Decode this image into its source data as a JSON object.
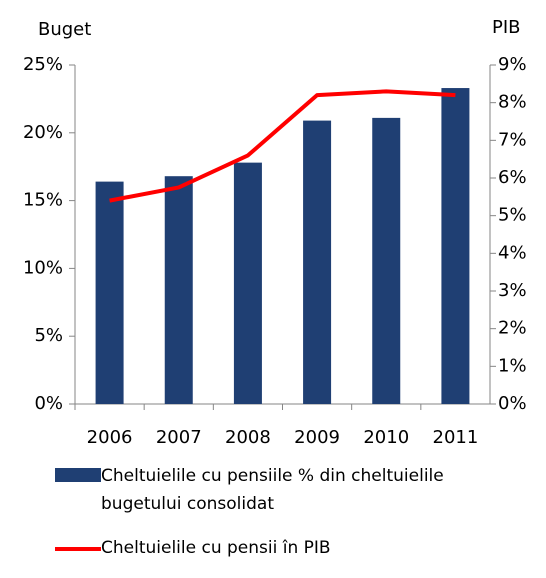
{
  "chart_data": {
    "type": "bar-line",
    "y_label": "Buget",
    "y2_label": "PIB",
    "categories": [
      "2006",
      "2007",
      "2008",
      "2009",
      "2010",
      "2011"
    ],
    "series": [
      {
        "name": "Cheltuielile cu pensiile % din cheltuielile bugetului consolidat",
        "type": "bar",
        "color": "#1f3f73",
        "values": [
          16.4,
          16.8,
          17.8,
          20.9,
          21.1,
          23.3
        ]
      },
      {
        "name": "Cheltuielile cu pensii în PIB",
        "type": "line",
        "axis": "y2",
        "color": "#ff0000",
        "values": [
          5.4,
          5.75,
          6.6,
          8.2,
          8.3,
          8.2
        ]
      }
    ],
    "ylim": [
      0,
      25
    ],
    "yticks": [
      {
        "value": 0,
        "label": "0%"
      },
      {
        "value": 5,
        "label": "5%"
      },
      {
        "value": 10,
        "label": "10%"
      },
      {
        "value": 15,
        "label": "15%"
      },
      {
        "value": 20,
        "label": "20%"
      },
      {
        "value": 25,
        "label": "25%"
      }
    ],
    "y2lim": [
      0,
      9
    ],
    "y2ticks": [
      {
        "value": 0,
        "label": "0%"
      },
      {
        "value": 1,
        "label": "1%"
      },
      {
        "value": 2,
        "label": "2%"
      },
      {
        "value": 3,
        "label": "3%"
      },
      {
        "value": 4,
        "label": "4%"
      },
      {
        "value": 5,
        "label": "5%"
      },
      {
        "value": 6,
        "label": "6%"
      },
      {
        "value": 7,
        "label": "7%"
      },
      {
        "value": 8,
        "label": "8%"
      },
      {
        "value": 9,
        "label": "9%"
      }
    ],
    "grid": false,
    "legend": "bottom"
  }
}
